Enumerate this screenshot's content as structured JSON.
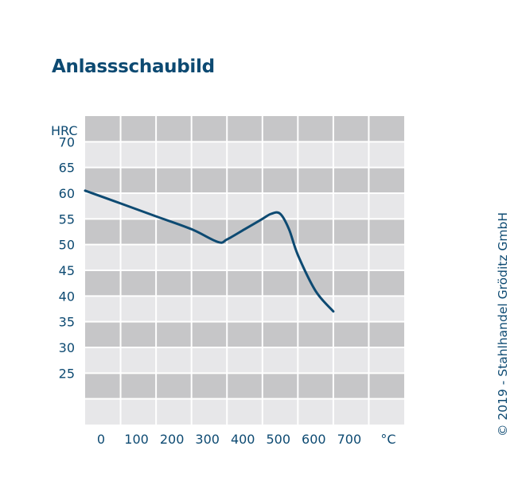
{
  "title": "Anlassschaubild",
  "copyright": "© 2019 - Stahlhandel Gröditz GmbH",
  "colors": {
    "text": "#0d4a72",
    "line": "#0d4a72",
    "band_dark": "#c6c6c8",
    "band_light": "#e7e7e9",
    "grid": "#ffffff"
  },
  "chart_data": {
    "type": "line",
    "title": "Anlassschaubild",
    "xlabel": "°C",
    "ylabel": "HRC",
    "xlim": [
      0,
      900
    ],
    "ylim": [
      15,
      75
    ],
    "grid": true,
    "x_ticks": [
      0,
      100,
      200,
      300,
      400,
      500,
      600,
      700
    ],
    "x_tick_labels": [
      "0",
      "100",
      "200",
      "300",
      "400",
      "500",
      "600",
      "700"
    ],
    "y_ticks": [
      70,
      65,
      60,
      55,
      50,
      45,
      40,
      35,
      30,
      25
    ],
    "y_tick_labels": [
      "70",
      "65",
      "60",
      "55",
      "50",
      "45",
      "40",
      "35",
      "30",
      "25"
    ],
    "series": [
      {
        "x": [
          0,
          100,
          200,
          300,
          375,
          400,
          450,
          500,
          525,
          550,
          575,
          600,
          650,
          700
        ],
        "y": [
          60.5,
          58,
          55.5,
          53,
          50.5,
          51,
          53,
          55,
          56,
          56,
          53,
          48,
          41,
          37
        ],
        "color": "#0d4a72"
      }
    ]
  }
}
